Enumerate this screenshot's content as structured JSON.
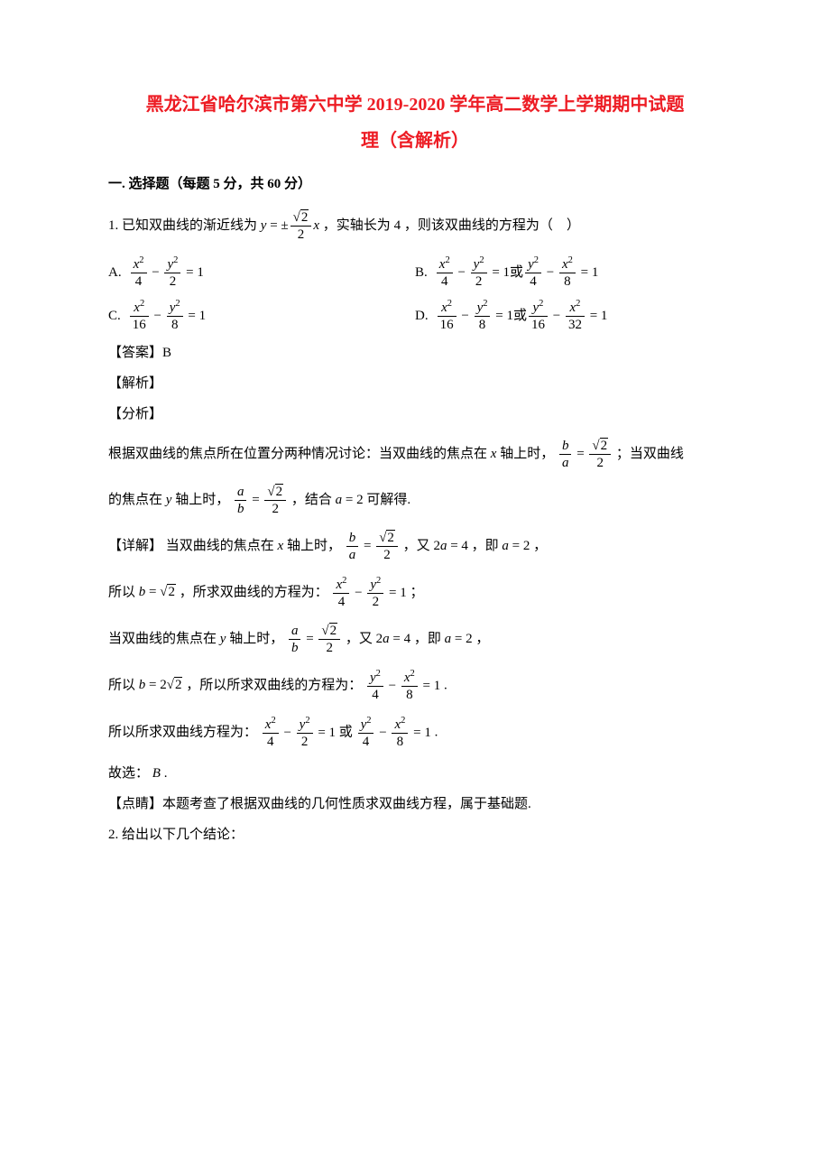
{
  "title": "黑龙江省哈尔滨市第六中学 2019-2020 学年高二数学上学期期中试题",
  "subtitle": "理（含解析）",
  "section": "一. 选择题（每题 5 分，共 60 分）",
  "q1": {
    "number": "1.",
    "text_before": "已知双曲线的渐近线为",
    "asymptote_prefix": "y = ±",
    "asymptote_num": "√2",
    "asymptote_den": "2",
    "asymptote_suffix": "x",
    "text_mid": "，实轴长为",
    "real_axis": "4",
    "text_after": "，则该双曲线的方程为（　）",
    "opts": {
      "A": {
        "label": "A.",
        "eq": "x²/4 − y²/2 = 1"
      },
      "B": {
        "label": "B.",
        "eq1": "x²/4 − y²/2 = 1",
        "or": "或",
        "eq2": "y²/4 − x²/8 = 1"
      },
      "C": {
        "label": "C.",
        "eq": "x²/16 − y²/8 = 1"
      },
      "D": {
        "label": "D.",
        "eq1": "x²/16 − y²/8 = 1",
        "or": "或",
        "eq2": "y²/16 − x²/32 = 1"
      }
    },
    "answer_label": "【答案】",
    "answer": "B",
    "jiexi": "【解析】",
    "fenxi": "【分析】",
    "analysis_p1a": "根据双曲线的焦点所在位置分两种情况讨论：当双曲线的焦点在",
    "x_axis": "x",
    "analysis_p1b": "轴上时，",
    "ratio_ba": "b/a = √2/2",
    "analysis_p1c": "；当双曲线",
    "analysis_p2a": "的焦点在",
    "y_axis": "y",
    "analysis_p2b": "轴上时，",
    "ratio_ab": "a/b = √2/2",
    "analysis_p2c": "，结合",
    "a_eq": "a = 2",
    "analysis_p2d": "可解得.",
    "xiangjie": "【详解】",
    "detail_p1a": "当双曲线的焦点在",
    "detail_p1b": "轴上时，",
    "detail_p1c": "，又",
    "two_a": "2a = 4",
    "detail_p1d": "，即",
    "detail_p1e": "，",
    "detail_p2a": "所以",
    "b_eq1": "b = √2",
    "detail_p2b": "，所求双曲线的方程为：",
    "eq_result1": "x²/4 − y²/2 = 1",
    "semicolon": "；",
    "detail_p3a": "当双曲线的焦点在",
    "detail_p3b": "轴上时，",
    "detail_p3c": "，又",
    "detail_p3d": "，即",
    "detail_p3e": "，",
    "detail_p4a": "所以",
    "b_eq2": "b = 2√2",
    "detail_p4b": "，所以所求双曲线的方程为：",
    "eq_result2": "y²/4 − x²/8 = 1",
    "period": ".",
    "detail_p5a": "所以所求双曲线方程为：",
    "or_text": "或",
    "conclude": "故选：",
    "conclude_ans": "B",
    "dianqing": "【点睛】",
    "dianqing_text": "本题考查了根据双曲线的几何性质求双曲线方程，属于基础题."
  },
  "q2": {
    "number": "2.",
    "text": "给出以下几个结论："
  },
  "colors": {
    "title": "#ed1c24",
    "text": "#000000",
    "background": "#ffffff"
  },
  "fonts": {
    "body_size": 15,
    "title_size": 20
  }
}
